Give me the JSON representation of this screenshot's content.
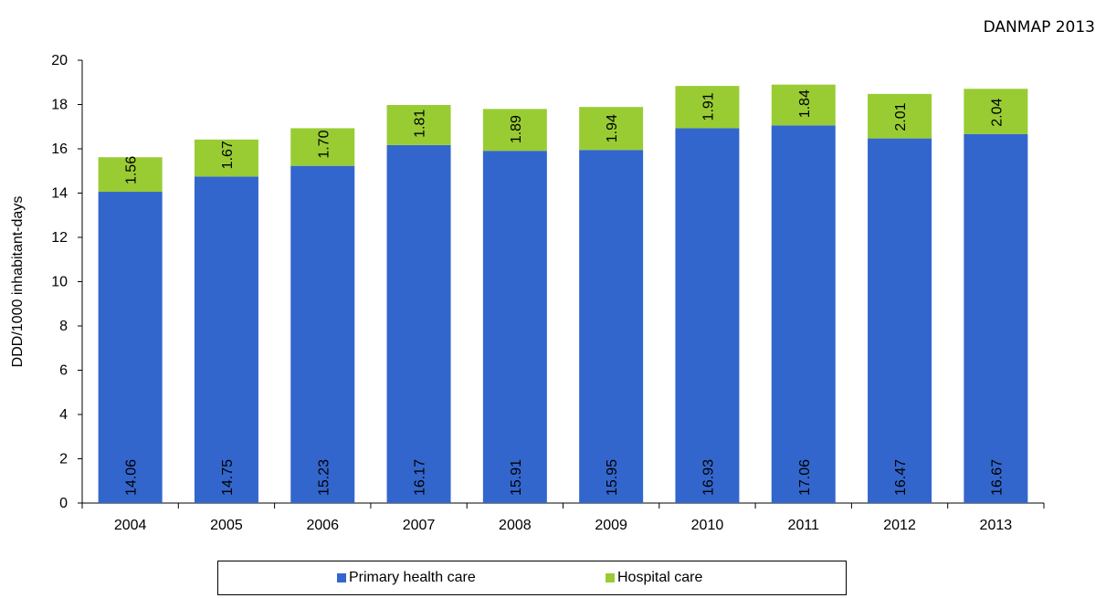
{
  "source_tag": "DANMAP 2013",
  "chart_data": {
    "type": "bar",
    "stacked": true,
    "categories": [
      "2004",
      "2005",
      "2006",
      "2007",
      "2008",
      "2009",
      "2010",
      "2011",
      "2012",
      "2013"
    ],
    "series": [
      {
        "name": "Primary health care",
        "color": "#3366CC",
        "values": [
          14.06,
          14.75,
          15.23,
          16.17,
          15.91,
          15.95,
          16.93,
          17.06,
          16.47,
          16.67
        ],
        "labels": [
          "14.06",
          "14.75",
          "15.23",
          "16.17",
          "15.91",
          "15.95",
          "16.93",
          "17.06",
          "16.47",
          "16.67"
        ]
      },
      {
        "name": "Hospital care",
        "color": "#99CC33",
        "values": [
          1.56,
          1.67,
          1.7,
          1.81,
          1.89,
          1.94,
          1.91,
          1.84,
          2.01,
          2.04
        ],
        "labels": [
          "1.56",
          "1.67",
          "1.70",
          "1.81",
          "1.89",
          "1.94",
          "1.91",
          "1.84",
          "2.01",
          "2.04"
        ]
      }
    ],
    "ylabel": "DDD/1000 inhabitant-days",
    "xlabel": "",
    "ylim": [
      0,
      20
    ],
    "yticks": [
      "0",
      "2",
      "4",
      "6",
      "8",
      "10",
      "12",
      "14",
      "16",
      "18",
      "20"
    ],
    "grid": false,
    "legend_position": "bottom"
  }
}
